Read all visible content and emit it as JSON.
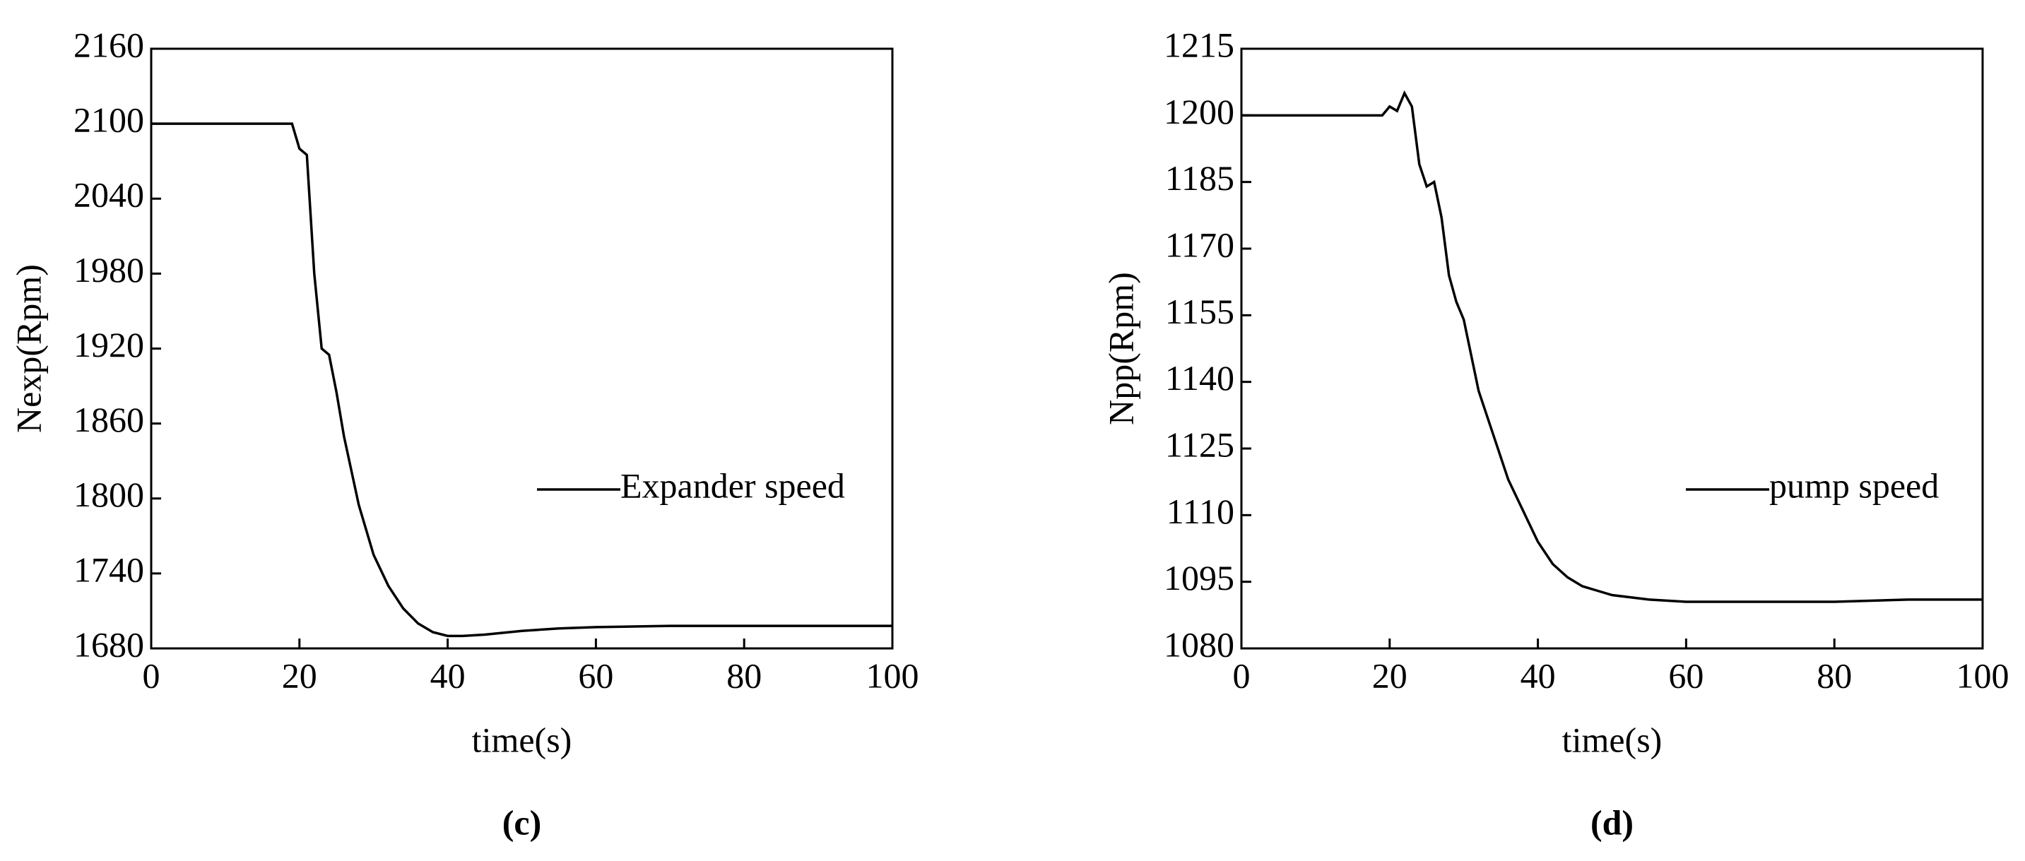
{
  "chart_data": [
    {
      "type": "line",
      "caption": "(c)",
      "xlabel": "time(s)",
      "ylabel": "Nexp(Rpm)",
      "x": [
        0,
        19,
        20,
        21,
        22,
        23,
        24,
        25,
        26,
        28,
        30,
        32,
        34,
        36,
        38,
        40,
        42,
        45,
        50,
        55,
        60,
        70,
        80,
        90,
        100
      ],
      "series": [
        {
          "name": "Expander speed",
          "color": "#000000",
          "values": [
            2100,
            2100,
            2080,
            2075,
            1980,
            1920,
            1915,
            1885,
            1850,
            1795,
            1755,
            1730,
            1712,
            1700,
            1693,
            1690,
            1690,
            1691,
            1694,
            1696,
            1697,
            1698,
            1698,
            1698,
            1698
          ]
        }
      ],
      "xlim": [
        0,
        100
      ],
      "xticks": [
        0,
        20,
        40,
        60,
        80,
        100
      ],
      "ylim": [
        1680,
        2160
      ],
      "yticks": [
        1680,
        1740,
        1800,
        1860,
        1920,
        1980,
        2040,
        2100,
        2160
      ]
    },
    {
      "type": "line",
      "caption": "(d)",
      "xlabel": "time(s)",
      "ylabel": "Npp(Rpm)",
      "x": [
        0,
        19,
        20,
        21,
        22,
        23,
        24,
        25,
        26,
        27,
        28,
        29,
        30,
        32,
        34,
        36,
        38,
        40,
        42,
        44,
        46,
        48,
        50,
        55,
        60,
        70,
        80,
        90,
        100
      ],
      "series": [
        {
          "name": "pump speed",
          "color": "#000000",
          "values": [
            1200,
            1200,
            1202,
            1201,
            1205,
            1202,
            1189,
            1184,
            1185,
            1177,
            1164,
            1158,
            1154,
            1138,
            1128,
            1118,
            1111,
            1104,
            1099,
            1096,
            1094,
            1093,
            1092,
            1091,
            1090.5,
            1090.5,
            1090.5,
            1091,
            1091
          ]
        }
      ],
      "xlim": [
        0,
        100
      ],
      "xticks": [
        0,
        20,
        40,
        60,
        80,
        100
      ],
      "ylim": [
        1080,
        1215
      ],
      "yticks": [
        1080,
        1095,
        1110,
        1125,
        1140,
        1155,
        1170,
        1185,
        1200,
        1215
      ]
    }
  ]
}
